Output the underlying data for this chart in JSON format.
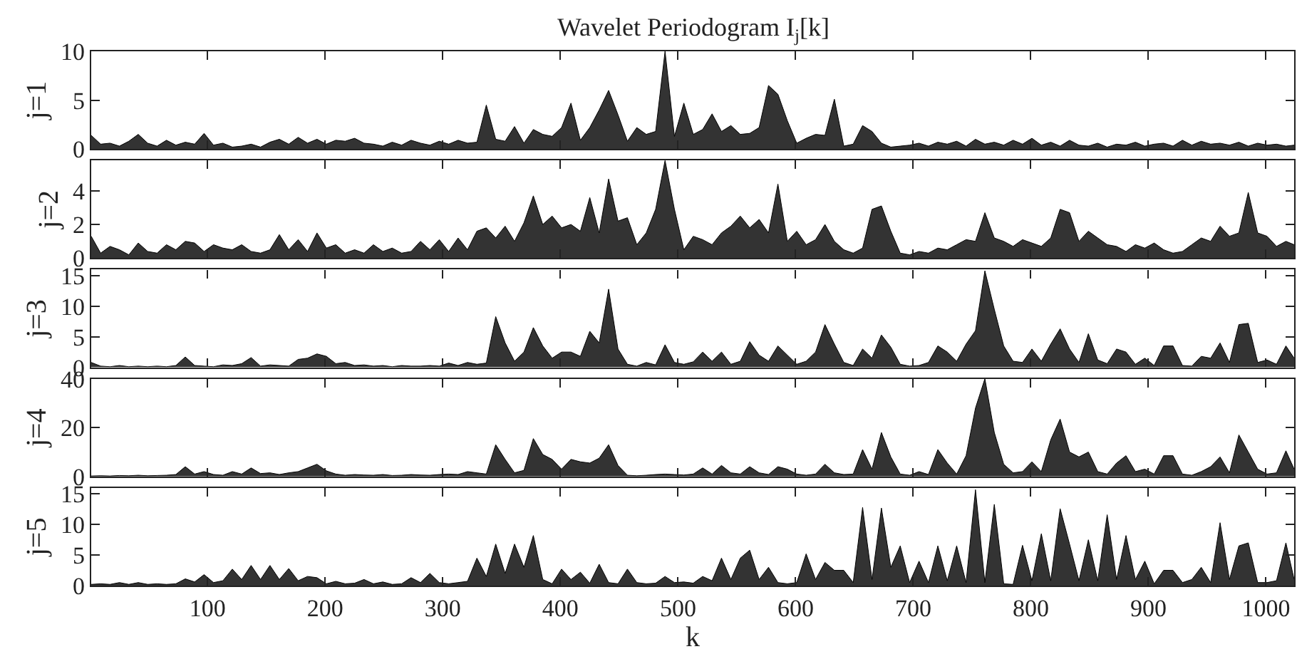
{
  "chart_data": [
    {
      "type": "area",
      "title": "Wavelet Periodogram I$_{j}$[k]",
      "ylabel": "j=1",
      "xlim": [
        1,
        1024
      ],
      "xticks": [
        100,
        200,
        300,
        400,
        500,
        600,
        700,
        800,
        900,
        1000
      ],
      "ylim": [
        0,
        10
      ],
      "yticks": [
        0,
        5,
        10
      ],
      "tick_labels": "y",
      "x": [
        1,
        9,
        17,
        25,
        33,
        41,
        49,
        57,
        65,
        73,
        81,
        89,
        97,
        105,
        113,
        121,
        129,
        137,
        145,
        153,
        161,
        169,
        177,
        185,
        193,
        201,
        209,
        217,
        225,
        233,
        241,
        249,
        257,
        265,
        273,
        281,
        289,
        297,
        305,
        313,
        321,
        329,
        337,
        345,
        353,
        361,
        369,
        377,
        385,
        393,
        401,
        409,
        417,
        425,
        433,
        441,
        449,
        457,
        465,
        473,
        481,
        489,
        497,
        505,
        513,
        521,
        529,
        537,
        545,
        553,
        561,
        569,
        577,
        585,
        593,
        601,
        609,
        617,
        625,
        633,
        641,
        649,
        657,
        665,
        673,
        681,
        689,
        697,
        705,
        713,
        721,
        729,
        737,
        745,
        753,
        761,
        769,
        777,
        785,
        793,
        801,
        809,
        817,
        825,
        833,
        841,
        849,
        857,
        865,
        873,
        881,
        889,
        897,
        905,
        913,
        921,
        929,
        937,
        945,
        953,
        961,
        969,
        977,
        985,
        993,
        1001,
        1009,
        1017,
        1024
      ],
      "series": [
        {
          "color": "#333333",
          "values": [
            1.4,
            0.5,
            0.6,
            0.3,
            0.8,
            1.5,
            0.6,
            0.3,
            0.9,
            0.4,
            0.7,
            0.5,
            1.6,
            0.4,
            0.6,
            0.2,
            0.3,
            0.5,
            0.2,
            0.7,
            1.0,
            0.5,
            1.2,
            0.6,
            1.0,
            0.5,
            0.9,
            0.8,
            1.1,
            0.6,
            0.5,
            0.3,
            0.7,
            0.4,
            0.9,
            0.6,
            0.4,
            0.8,
            0.5,
            0.9,
            0.6,
            0.7,
            4.5,
            1.0,
            0.8,
            2.3,
            0.6,
            2.0,
            1.5,
            1.3,
            2.2,
            4.7,
            0.9,
            2.2,
            4.0,
            6.0,
            3.5,
            0.8,
            2.2,
            1.5,
            1.8,
            10,
            1.3,
            4.7,
            1.5,
            2.0,
            3.6,
            1.8,
            2.4,
            1.5,
            1.6,
            2.2,
            6.5,
            5.6,
            2.9,
            0.6,
            1.1,
            1.5,
            1.4,
            5.1,
            0.3,
            0.5,
            2.4,
            1.8,
            0.6,
            0.2,
            0.3,
            0.4,
            0.6,
            0.3,
            0.7,
            0.5,
            0.8,
            0.3,
            1.0,
            0.5,
            0.7,
            0.4,
            0.9,
            0.5,
            1.1,
            0.4,
            0.7,
            0.3,
            0.9,
            0.4,
            0.3,
            0.6,
            0.2,
            0.5,
            0.4,
            0.7,
            0.3,
            0.5,
            0.6,
            0.3,
            0.9,
            0.4,
            0.8,
            0.5,
            0.6,
            0.4,
            0.7,
            0.3,
            0.6,
            0.4,
            0.5,
            0.3,
            0.4
          ]
        }
      ]
    },
    {
      "type": "area",
      "ylabel": "j=2",
      "xlim": [
        1,
        1024
      ],
      "xticks": [
        100,
        200,
        300,
        400,
        500,
        600,
        700,
        800,
        900,
        1000
      ],
      "ylim": [
        0,
        5.8
      ],
      "yticks": [
        0,
        2,
        4
      ],
      "tick_labels": "y",
      "x": [
        1,
        9,
        17,
        25,
        33,
        41,
        49,
        57,
        65,
        73,
        81,
        89,
        97,
        105,
        113,
        121,
        129,
        137,
        145,
        153,
        161,
        169,
        177,
        185,
        193,
        201,
        209,
        217,
        225,
        233,
        241,
        249,
        257,
        265,
        273,
        281,
        289,
        297,
        305,
        313,
        321,
        329,
        337,
        345,
        353,
        361,
        369,
        377,
        385,
        393,
        401,
        409,
        417,
        425,
        433,
        441,
        449,
        457,
        465,
        473,
        481,
        489,
        497,
        505,
        513,
        521,
        529,
        537,
        545,
        553,
        561,
        569,
        577,
        585,
        593,
        601,
        609,
        617,
        625,
        633,
        641,
        649,
        657,
        665,
        673,
        681,
        689,
        697,
        705,
        713,
        721,
        729,
        737,
        745,
        753,
        761,
        769,
        777,
        785,
        793,
        801,
        809,
        817,
        825,
        833,
        841,
        849,
        857,
        865,
        873,
        881,
        889,
        897,
        905,
        913,
        921,
        929,
        937,
        945,
        953,
        961,
        969,
        977,
        985,
        993,
        1001,
        1009,
        1017,
        1024
      ],
      "series": [
        {
          "color": "#333333",
          "values": [
            1.3,
            0.3,
            0.7,
            0.5,
            0.2,
            0.9,
            0.4,
            0.3,
            0.8,
            0.5,
            1.0,
            0.9,
            0.4,
            0.8,
            0.6,
            0.5,
            0.8,
            0.4,
            0.3,
            0.5,
            1.4,
            0.5,
            1.1,
            0.4,
            1.5,
            0.6,
            0.8,
            0.3,
            0.5,
            0.3,
            0.8,
            0.4,
            0.6,
            0.3,
            0.4,
            1.0,
            0.5,
            1.1,
            0.4,
            1.2,
            0.5,
            1.6,
            1.8,
            1.2,
            1.9,
            1.0,
            2.1,
            3.7,
            2.0,
            2.5,
            1.8,
            2.0,
            1.6,
            3.6,
            1.5,
            4.7,
            2.2,
            2.4,
            0.8,
            1.5,
            2.9,
            5.8,
            2.9,
            0.5,
            1.3,
            1.1,
            0.8,
            1.5,
            1.9,
            2.5,
            1.8,
            2.3,
            1.5,
            4.4,
            1.0,
            1.6,
            0.8,
            1.1,
            2.0,
            1.0,
            0.5,
            0.3,
            0.6,
            2.9,
            3.1,
            1.6,
            0.3,
            0.2,
            0.4,
            0.3,
            0.6,
            0.5,
            0.8,
            1.1,
            1.0,
            2.7,
            1.2,
            1.0,
            0.7,
            1.1,
            0.9,
            0.7,
            1.2,
            2.9,
            2.7,
            1.0,
            1.6,
            1.2,
            0.8,
            0.7,
            0.4,
            0.8,
            0.6,
            0.9,
            0.5,
            0.3,
            0.4,
            0.8,
            1.2,
            1.0,
            1.9,
            1.3,
            1.5,
            3.9,
            1.5,
            1.3,
            0.7,
            1.0,
            0.8
          ]
        }
      ]
    },
    {
      "type": "area",
      "ylabel": "j=3",
      "xlim": [
        1,
        1024
      ],
      "xticks": [
        100,
        200,
        300,
        400,
        500,
        600,
        700,
        800,
        900,
        1000
      ],
      "ylim": [
        0,
        16
      ],
      "yticks": [
        0,
        5,
        10,
        15
      ],
      "tick_labels": "y",
      "x": [
        1,
        9,
        17,
        25,
        33,
        41,
        49,
        57,
        65,
        73,
        81,
        89,
        97,
        105,
        113,
        121,
        129,
        137,
        145,
        153,
        161,
        169,
        177,
        185,
        193,
        201,
        209,
        217,
        225,
        233,
        241,
        249,
        257,
        265,
        273,
        281,
        289,
        297,
        305,
        313,
        321,
        329,
        337,
        345,
        353,
        361,
        369,
        377,
        385,
        393,
        401,
        409,
        417,
        425,
        433,
        441,
        449,
        457,
        465,
        473,
        481,
        489,
        497,
        505,
        513,
        521,
        529,
        537,
        545,
        553,
        561,
        569,
        577,
        585,
        593,
        601,
        609,
        617,
        625,
        633,
        641,
        649,
        657,
        665,
        673,
        681,
        689,
        697,
        705,
        713,
        721,
        729,
        737,
        745,
        753,
        761,
        769,
        777,
        785,
        793,
        801,
        809,
        817,
        825,
        833,
        841,
        849,
        857,
        865,
        873,
        881,
        889,
        897,
        905,
        913,
        921,
        929,
        937,
        945,
        953,
        961,
        969,
        977,
        985,
        993,
        1001,
        1009,
        1017,
        1024
      ],
      "series": [
        {
          "color": "#333333",
          "values": [
            0.8,
            0.2,
            0.1,
            0.3,
            0.1,
            0.2,
            0.1,
            0.2,
            0.1,
            0.3,
            1.7,
            0.3,
            0.2,
            0.1,
            0.4,
            0.3,
            0.6,
            1.6,
            0.2,
            0.4,
            0.3,
            0.2,
            1.3,
            1.5,
            2.2,
            1.8,
            0.6,
            0.8,
            0.3,
            0.4,
            0.2,
            0.3,
            0.1,
            0.3,
            0.2,
            0.2,
            0.3,
            0.2,
            0.7,
            0.3,
            0.8,
            0.5,
            0.7,
            8.3,
            4.0,
            1.0,
            2.5,
            6.5,
            3.5,
            1.5,
            2.5,
            2.5,
            1.8,
            5.9,
            4.0,
            12.8,
            3.0,
            0.5,
            0.2,
            0.8,
            0.4,
            3.7,
            0.8,
            0.5,
            0.9,
            2.5,
            1.0,
            2.5,
            0.5,
            1.0,
            4.2,
            2.0,
            1.0,
            3.5,
            2.0,
            0.5,
            1.0,
            2.5,
            7.0,
            3.8,
            0.8,
            0.3,
            3.0,
            1.5,
            5.3,
            3.3,
            0.5,
            0.2,
            0.3,
            0.8,
            3.5,
            2.5,
            1.0,
            3.8,
            6.0,
            15.8,
            9.5,
            3.5,
            1.0,
            0.8,
            3.0,
            1.0,
            3.8,
            6.3,
            3.0,
            0.8,
            5.5,
            1.2,
            0.6,
            3.0,
            2.5,
            0.5,
            1.5,
            0.3,
            3.5,
            3.5,
            0.3,
            0.2,
            1.8,
            1.5,
            4.0,
            0.8,
            7.0,
            7.2,
            0.8,
            1.2,
            0.5,
            3.5,
            1.5
          ]
        }
      ]
    },
    {
      "type": "area",
      "ylabel": "j=4",
      "xlim": [
        1,
        1024
      ],
      "xticks": [
        100,
        200,
        300,
        400,
        500,
        600,
        700,
        800,
        900,
        1000
      ],
      "ylim": [
        0,
        40
      ],
      "yticks": [
        0,
        20,
        40
      ],
      "tick_labels": "y",
      "x": [
        1,
        9,
        17,
        25,
        33,
        41,
        49,
        57,
        65,
        73,
        81,
        89,
        97,
        105,
        113,
        121,
        129,
        137,
        145,
        153,
        161,
        169,
        177,
        185,
        193,
        201,
        209,
        217,
        225,
        233,
        241,
        249,
        257,
        265,
        273,
        281,
        289,
        297,
        305,
        313,
        321,
        329,
        337,
        345,
        353,
        361,
        369,
        377,
        385,
        393,
        401,
        409,
        417,
        425,
        433,
        441,
        449,
        457,
        465,
        473,
        481,
        489,
        497,
        505,
        513,
        521,
        529,
        537,
        545,
        553,
        561,
        569,
        577,
        585,
        593,
        601,
        609,
        617,
        625,
        633,
        641,
        649,
        657,
        665,
        673,
        681,
        689,
        697,
        705,
        713,
        721,
        729,
        737,
        745,
        753,
        761,
        769,
        777,
        785,
        793,
        801,
        809,
        817,
        825,
        833,
        841,
        849,
        857,
        865,
        873,
        881,
        889,
        897,
        905,
        913,
        921,
        929,
        937,
        945,
        953,
        961,
        969,
        977,
        985,
        993,
        1001,
        1009,
        1017,
        1024
      ],
      "series": [
        {
          "color": "#333333",
          "values": [
            0.2,
            0.3,
            0.2,
            0.4,
            0.3,
            0.5,
            0.3,
            0.4,
            0.5,
            0.8,
            4.0,
            1.0,
            2.0,
            0.8,
            0.5,
            2.0,
            1.0,
            3.5,
            1.2,
            1.5,
            0.8,
            1.5,
            2.0,
            3.5,
            5.0,
            2.3,
            1.0,
            0.5,
            0.8,
            0.6,
            0.5,
            0.8,
            0.4,
            0.5,
            0.8,
            0.6,
            0.5,
            0.8,
            1.0,
            0.8,
            2.0,
            1.5,
            1.0,
            13.0,
            7.0,
            1.5,
            2.5,
            15.5,
            9.0,
            7.0,
            3.0,
            7.0,
            6.0,
            5.5,
            7.5,
            13.0,
            4.5,
            0.5,
            0.3,
            0.5,
            0.8,
            1.0,
            0.8,
            0.6,
            1.0,
            3.5,
            1.0,
            4.5,
            1.5,
            1.0,
            4.0,
            1.5,
            0.8,
            4.0,
            3.0,
            1.0,
            0.5,
            1.0,
            5.0,
            1.5,
            0.8,
            1.0,
            11.0,
            3.0,
            18.0,
            8.0,
            1.0,
            0.5,
            2.0,
            0.8,
            11.0,
            5.5,
            1.0,
            8.5,
            28.0,
            40.0,
            18.0,
            5.0,
            1.5,
            2.0,
            6.0,
            2.0,
            15.0,
            23.5,
            10.0,
            8.0,
            10.0,
            2.0,
            1.0,
            5.5,
            8.5,
            2.0,
            3.0,
            1.0,
            8.5,
            8.5,
            1.0,
            0.5,
            2.0,
            4.0,
            8.0,
            1.5,
            17.0,
            10.0,
            3.0,
            1.0,
            1.5,
            10.5,
            3.0
          ]
        }
      ]
    },
    {
      "type": "area",
      "ylabel": "j=5",
      "xlabel": "k",
      "xlim": [
        1,
        1024
      ],
      "xticks": [
        100,
        200,
        300,
        400,
        500,
        600,
        700,
        800,
        900,
        1000
      ],
      "ylim": [
        0,
        16
      ],
      "yticks": [
        0,
        5,
        10,
        15
      ],
      "x": [
        1,
        9,
        17,
        25,
        33,
        41,
        49,
        57,
        65,
        73,
        81,
        89,
        97,
        105,
        113,
        121,
        129,
        137,
        145,
        153,
        161,
        169,
        177,
        185,
        193,
        201,
        209,
        217,
        225,
        233,
        241,
        249,
        257,
        265,
        273,
        281,
        289,
        297,
        305,
        313,
        321,
        329,
        337,
        345,
        353,
        361,
        369,
        377,
        385,
        393,
        401,
        409,
        417,
        425,
        433,
        441,
        449,
        457,
        465,
        473,
        481,
        489,
        497,
        505,
        513,
        521,
        529,
        537,
        545,
        553,
        561,
        569,
        577,
        585,
        593,
        601,
        609,
        617,
        625,
        633,
        641,
        649,
        657,
        665,
        673,
        681,
        689,
        697,
        705,
        713,
        721,
        729,
        737,
        745,
        753,
        761,
        769,
        777,
        785,
        793,
        801,
        809,
        817,
        825,
        833,
        841,
        849,
        857,
        865,
        873,
        881,
        889,
        897,
        905,
        913,
        921,
        929,
        937,
        945,
        953,
        961,
        969,
        977,
        985,
        993,
        1001,
        1009,
        1017,
        1024
      ],
      "series": [
        {
          "color": "#333333",
          "values": [
            0.2,
            0.3,
            0.2,
            0.5,
            0.2,
            0.5,
            0.2,
            0.3,
            0.2,
            0.3,
            1.1,
            0.6,
            1.8,
            0.5,
            0.8,
            2.7,
            1.0,
            3.3,
            1.0,
            3.3,
            1.0,
            2.8,
            0.8,
            1.5,
            1.3,
            0.3,
            0.7,
            0.3,
            0.4,
            1.0,
            0.3,
            0.6,
            0.2,
            0.3,
            1.3,
            0.5,
            2.0,
            0.5,
            0.3,
            0.5,
            0.7,
            4.5,
            1.5,
            6.8,
            2.0,
            6.8,
            3.0,
            8.2,
            1.0,
            0.3,
            2.7,
            1.0,
            2.2,
            0.4,
            3.5,
            0.5,
            0.3,
            2.7,
            0.5,
            0.3,
            0.4,
            1.5,
            0.5,
            0.6,
            0.4,
            1.5,
            0.8,
            4.5,
            1.0,
            4.5,
            5.8,
            1.0,
            3.0,
            0.5,
            0.3,
            0.5,
            5.2,
            1.0,
            3.8,
            2.5,
            2.5,
            0.5,
            12.8,
            1.0,
            12.7,
            3.0,
            6.5,
            0.5,
            4.0,
            0.5,
            6.5,
            0.8,
            6.5,
            0.5,
            15.7,
            0.5,
            13.3,
            0.3,
            0.2,
            6.6,
            0.8,
            8.5,
            0.8,
            12.6,
            6.8,
            0.8,
            7.5,
            0.8,
            11.6,
            1.0,
            8.2,
            1.0,
            4.0,
            0.3,
            2.5,
            2.5,
            0.5,
            1.0,
            3.0,
            0.5,
            10.3,
            1.0,
            6.5,
            7.0,
            0.5,
            0.5,
            0.8,
            7.0,
            1.0
          ]
        }
      ]
    }
  ]
}
